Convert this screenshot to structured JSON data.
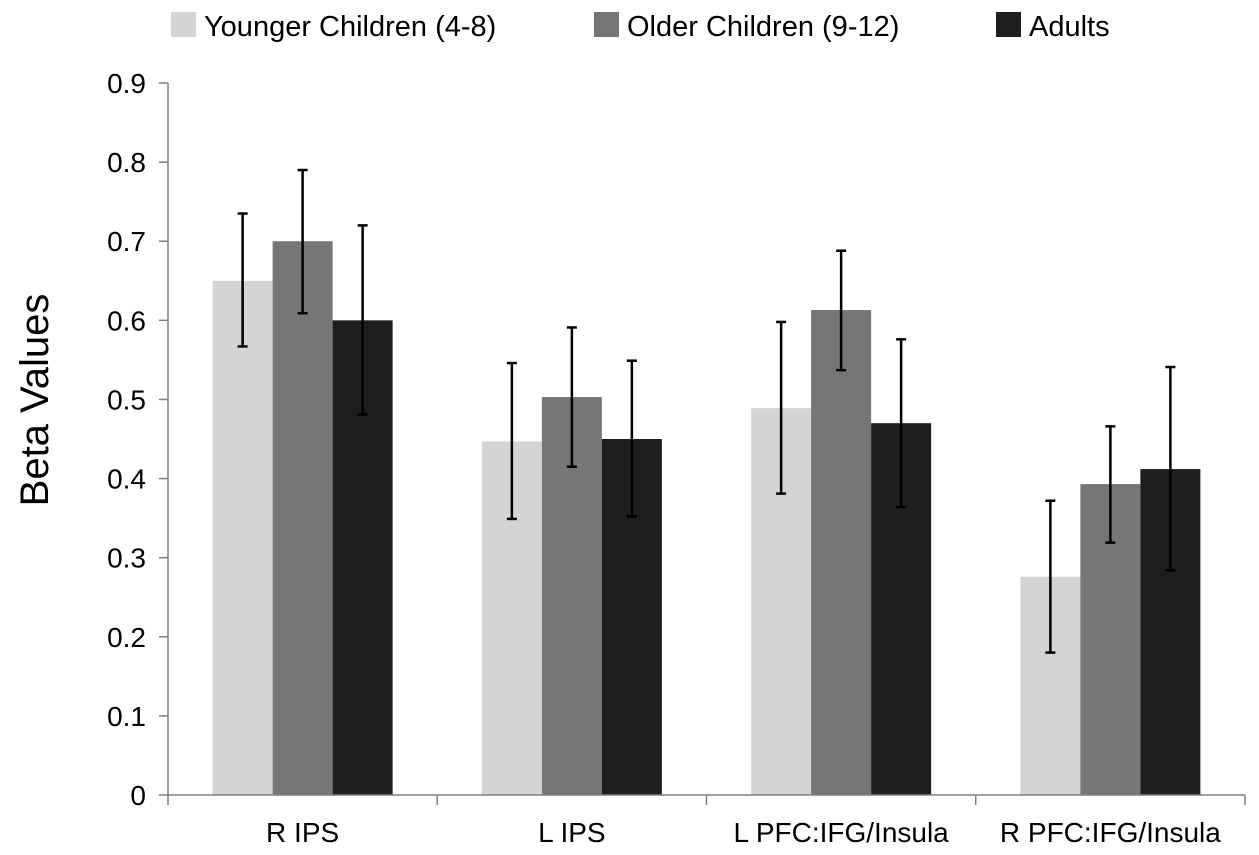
{
  "chart_data": {
    "type": "bar",
    "categories": [
      "R IPS",
      "L IPS",
      "L PFC:IFG/Insula",
      "R PFC:IFG/Insula"
    ],
    "series": [
      {
        "name": "Younger Children (4-8)",
        "color": "#d4d4d4",
        "values": [
          0.65,
          0.447,
          0.489,
          0.276
        ],
        "err_low": [
          0.567,
          0.349,
          0.381,
          0.18
        ],
        "err_high": [
          0.735,
          0.546,
          0.598,
          0.372
        ]
      },
      {
        "name": "Older Children (9-12)",
        "color": "#767676",
        "values": [
          0.7,
          0.503,
          0.613,
          0.393
        ],
        "err_low": [
          0.609,
          0.415,
          0.537,
          0.319
        ],
        "err_high": [
          0.79,
          0.591,
          0.688,
          0.466
        ]
      },
      {
        "name": "Adults",
        "color": "#1e1e1e",
        "values": [
          0.6,
          0.45,
          0.47,
          0.412
        ],
        "err_low": [
          0.481,
          0.352,
          0.364,
          0.284
        ],
        "err_high": [
          0.72,
          0.549,
          0.576,
          0.541
        ]
      }
    ],
    "yticks": [
      "0",
      "0.1",
      "0.2",
      "0.3",
      "0.4",
      "0.5",
      "0.6",
      "0.7",
      "0.8",
      "0.9"
    ],
    "ylim": [
      0,
      0.9
    ],
    "ylabel": "Beta Values",
    "xlabel": "",
    "title": "",
    "legend_position": "top",
    "grid": false
  }
}
